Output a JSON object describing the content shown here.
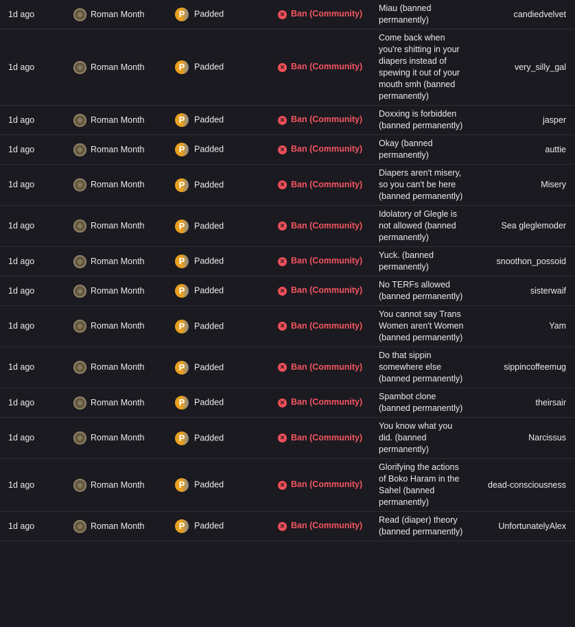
{
  "colors": {
    "background": "#1b1a20",
    "ban": "#f25560",
    "badge": "#e8a020"
  },
  "rows": [
    {
      "time": "1d ago",
      "moderator": "Roman Month",
      "badge_letter": "P",
      "badge": "Padded",
      "action": "Ban (Community)",
      "reason": "Miau (banned permanently)",
      "user": "candiedvelvet"
    },
    {
      "time": "1d ago",
      "moderator": "Roman Month",
      "badge_letter": "P",
      "badge": "Padded",
      "action": "Ban (Community)",
      "reason": "Come back when you're shitting in your diapers instead of spewing it out of your mouth smh (banned permanently)",
      "user": "very_silly_gal"
    },
    {
      "time": "1d ago",
      "moderator": "Roman Month",
      "badge_letter": "P",
      "badge": "Padded",
      "action": "Ban (Community)",
      "reason": "Doxxing is forbidden (banned permanently)",
      "user": "jasper"
    },
    {
      "time": "1d ago",
      "moderator": "Roman Month",
      "badge_letter": "P",
      "badge": "Padded",
      "action": "Ban (Community)",
      "reason": "Okay (banned permanently)",
      "user": "auttie"
    },
    {
      "time": "1d ago",
      "moderator": "Roman Month",
      "badge_letter": "P",
      "badge": "Padded",
      "action": "Ban (Community)",
      "reason": "Diapers aren't misery, so you can't be here (banned permanently)",
      "user": "Misery"
    },
    {
      "time": "1d ago",
      "moderator": "Roman Month",
      "badge_letter": "P",
      "badge": "Padded",
      "action": "Ban (Community)",
      "reason": "Idolatory of Glegle is not allowed (banned permanently)",
      "user": "Sea gleglemoder"
    },
    {
      "time": "1d ago",
      "moderator": "Roman Month",
      "badge_letter": "P",
      "badge": "Padded",
      "action": "Ban (Community)",
      "reason": "Yuck. (banned permanently)",
      "user": "snoothon_possoid"
    },
    {
      "time": "1d ago",
      "moderator": "Roman Month",
      "badge_letter": "P",
      "badge": "Padded",
      "action": "Ban (Community)",
      "reason": "No TERFs allowed (banned permanently)",
      "user": "sisterwaif"
    },
    {
      "time": "1d ago",
      "moderator": "Roman Month",
      "badge_letter": "P",
      "badge": "Padded",
      "action": "Ban (Community)",
      "reason": "You cannot say Trans Women aren't Women (banned permanently)",
      "user": "Yam"
    },
    {
      "time": "1d ago",
      "moderator": "Roman Month",
      "badge_letter": "P",
      "badge": "Padded",
      "action": "Ban (Community)",
      "reason": "Do that sippin somewhere else (banned permanently)",
      "user": "sippincoffeemug"
    },
    {
      "time": "1d ago",
      "moderator": "Roman Month",
      "badge_letter": "P",
      "badge": "Padded",
      "action": "Ban (Community)",
      "reason": "Spambot clone (banned permanently)",
      "user": "theirsair"
    },
    {
      "time": "1d ago",
      "moderator": "Roman Month",
      "badge_letter": "P",
      "badge": "Padded",
      "action": "Ban (Community)",
      "reason": "You know what you did. (banned permanently)",
      "user": "Narcissus"
    },
    {
      "time": "1d ago",
      "moderator": "Roman Month",
      "badge_letter": "P",
      "badge": "Padded",
      "action": "Ban (Community)",
      "reason": "Glorifying the actions of Boko Haram in the Sahel (banned permanently)",
      "user": "dead-consciousness"
    },
    {
      "time": "1d ago",
      "moderator": "Roman Month",
      "badge_letter": "P",
      "badge": "Padded",
      "action": "Ban (Community)",
      "reason": "Read (diaper) theory (banned permanently)",
      "user": "UnfortunatelyAlex"
    }
  ]
}
